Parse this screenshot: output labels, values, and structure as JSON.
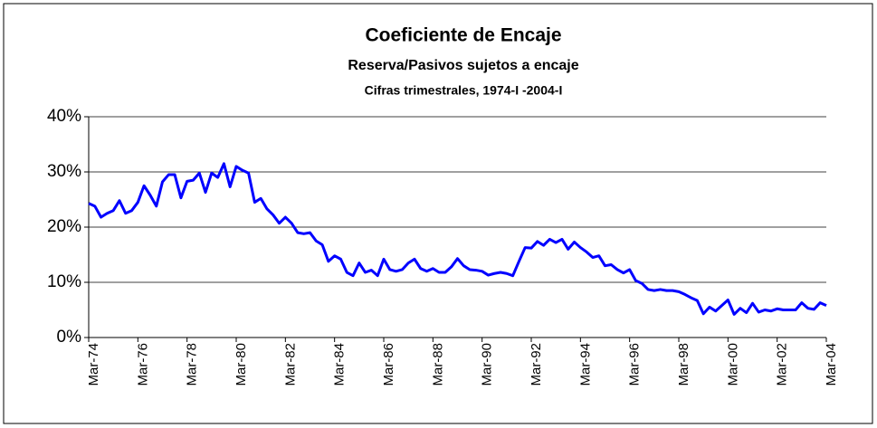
{
  "chart_data": {
    "type": "line",
    "title": "Coeficiente de Encaje",
    "subtitle": "Reserva/Pasivos sujetos a encaje",
    "note": "Cifras trimestrales, 1974-I -2004-I",
    "categories": [
      "Mar-74",
      null,
      null,
      null,
      null,
      null,
      null,
      null,
      "Mar-76",
      null,
      null,
      null,
      null,
      null,
      null,
      null,
      "Mar-78",
      null,
      null,
      null,
      null,
      null,
      null,
      null,
      "Mar-80",
      null,
      null,
      null,
      null,
      null,
      null,
      null,
      "Mar-82",
      null,
      null,
      null,
      null,
      null,
      null,
      null,
      "Mar-84",
      null,
      null,
      null,
      null,
      null,
      null,
      null,
      "Mar-86",
      null,
      null,
      null,
      null,
      null,
      null,
      null,
      "Mar-88",
      null,
      null,
      null,
      null,
      null,
      null,
      null,
      "Mar-90",
      null,
      null,
      null,
      null,
      null,
      null,
      null,
      "Mar-92",
      null,
      null,
      null,
      null,
      null,
      null,
      null,
      "Mar-94",
      null,
      null,
      null,
      null,
      null,
      null,
      null,
      "Mar-96",
      null,
      null,
      null,
      null,
      null,
      null,
      null,
      "Mar-98",
      null,
      null,
      null,
      null,
      null,
      null,
      null,
      "Mar-00",
      null,
      null,
      null,
      null,
      null,
      null,
      null,
      "Mar-02",
      null,
      null,
      null,
      null,
      null,
      null,
      null,
      "Mar-04"
    ],
    "series": [
      {
        "name": "Coeficiente de Encaje",
        "color": "#0000ff",
        "values": [
          24.3,
          23.8,
          21.8,
          22.5,
          23,
          24.8,
          22.5,
          23,
          24.5,
          27.5,
          25.8,
          23.8,
          28.2,
          29.5,
          29.5,
          25.3,
          28.3,
          28.5,
          29.8,
          26.3,
          29.8,
          29,
          31.5,
          27.3,
          31,
          30.3,
          29.8,
          24.5,
          25.2,
          23.3,
          22.2,
          20.7,
          21.8,
          20.7,
          19,
          18.8,
          19,
          17.5,
          16.8,
          13.8,
          14.8,
          14.2,
          11.8,
          11.2,
          13.5,
          11.8,
          12.2,
          11.2,
          14.2,
          12.3,
          12,
          12.3,
          13.5,
          14.2,
          12.5,
          12,
          12.5,
          11.8,
          11.8,
          12.8,
          14.3,
          13,
          12.3,
          12.2,
          12,
          11.3,
          11.6,
          11.8,
          11.6,
          11.2,
          13.8,
          16.3,
          16.2,
          17.4,
          16.7,
          17.8,
          17.2,
          17.8,
          16,
          17.3,
          16.3,
          15.5,
          14.5,
          14.8,
          13,
          13.2,
          12.3,
          11.7,
          12.3,
          10.3,
          9.8,
          8.7,
          8.5,
          8.7,
          8.5,
          8.5,
          8.3,
          7.8,
          7.2,
          6.7,
          4.3,
          5.5,
          4.8,
          5.8,
          6.8,
          4.2,
          5.3,
          4.5,
          6.2,
          4.6,
          5,
          4.8,
          5.2,
          5,
          5,
          5,
          6.3,
          5.3,
          5.1,
          6.3,
          5.8
        ]
      }
    ],
    "ylim": [
      0,
      40
    ],
    "yticks": [
      {
        "value": 0,
        "label": "0%"
      },
      {
        "value": 10,
        "label": "10%"
      },
      {
        "value": 20,
        "label": "20%"
      },
      {
        "value": 30,
        "label": "30%"
      },
      {
        "value": 40,
        "label": "40%"
      }
    ],
    "grid": true
  }
}
